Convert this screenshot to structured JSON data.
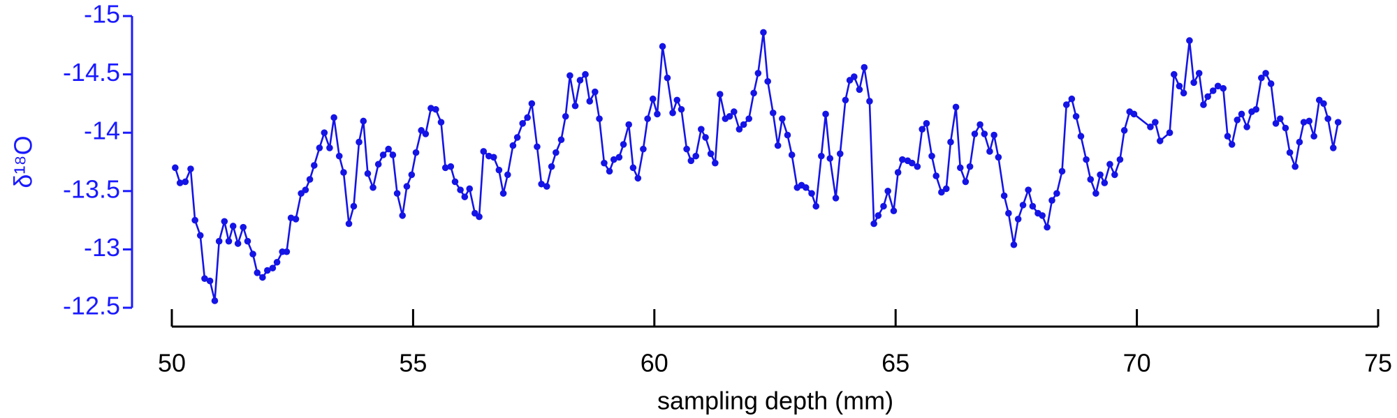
{
  "chart_data": {
    "type": "line",
    "xlabel": "sampling depth (mm)",
    "ylabel": "δ¹⁸O",
    "xlim": [
      50,
      75
    ],
    "xticks": [
      50,
      55,
      60,
      65,
      70,
      75
    ],
    "ylim": [
      -12.5,
      -15
    ],
    "yticks": [
      -15,
      -14.5,
      -14,
      -13.5,
      -13,
      -12.5
    ],
    "color": "#1414e6",
    "y_axis_color": "#1a1aff",
    "x_axis_color": "#000000",
    "markers": true,
    "x": [
      50.07,
      50.17,
      50.28,
      50.39,
      50.48,
      50.59,
      50.68,
      50.79,
      50.89,
      50.98,
      51.09,
      51.18,
      51.27,
      51.37,
      51.48,
      51.57,
      51.68,
      51.77,
      51.88,
      51.98,
      52.09,
      52.18,
      52.29,
      52.38,
      52.47,
      52.57,
      52.68,
      52.77,
      52.86,
      52.95,
      53.06,
      53.16,
      53.27,
      53.36,
      53.47,
      53.56,
      53.67,
      53.77,
      53.88,
      53.97,
      54.06,
      54.17,
      54.28,
      54.38,
      54.49,
      54.58,
      54.67,
      54.78,
      54.87,
      54.97,
      55.06,
      55.17,
      55.26,
      55.37,
      55.47,
      55.58,
      55.67,
      55.78,
      55.87,
      55.98,
      56.07,
      56.17,
      56.28,
      56.37,
      56.46,
      56.57,
      56.67,
      56.78,
      56.87,
      56.96,
      57.07,
      57.16,
      57.27,
      57.37,
      57.46,
      57.57,
      57.66,
      57.77,
      57.87,
      57.96,
      58.07,
      58.16,
      58.25,
      58.36,
      58.46,
      58.57,
      58.66,
      58.77,
      58.86,
      58.96,
      59.07,
      59.16,
      59.27,
      59.36,
      59.47,
      59.56,
      59.66,
      59.77,
      59.86,
      59.97,
      60.06,
      60.17,
      60.27,
      60.38,
      60.47,
      60.56,
      60.67,
      60.76,
      60.86,
      60.97,
      61.06,
      61.17,
      61.26,
      61.36,
      61.47,
      61.56,
      61.65,
      61.76,
      61.85,
      61.96,
      62.06,
      62.15,
      62.26,
      62.35,
      62.46,
      62.56,
      62.65,
      62.76,
      62.85,
      62.96,
      63.05,
      63.14,
      63.26,
      63.35,
      63.46,
      63.55,
      63.64,
      63.76,
      63.85,
      63.96,
      64.05,
      64.14,
      64.25,
      64.35,
      64.46,
      64.55,
      64.64,
      64.75,
      64.84,
      64.96,
      65.05,
      65.14,
      65.25,
      65.34,
      65.45,
      65.55,
      65.64,
      65.75,
      65.84,
      65.95,
      66.05,
      66.14,
      66.25,
      66.34,
      66.45,
      66.54,
      66.64,
      66.75,
      66.84,
      66.95,
      67.04,
      67.13,
      67.25,
      67.34,
      67.45,
      67.54,
      67.64,
      67.75,
      67.84,
      67.95,
      68.04,
      68.14,
      68.24,
      68.34,
      68.45,
      68.54,
      68.65,
      68.74,
      68.84,
      68.95,
      69.04,
      69.15,
      69.24,
      69.33,
      69.44,
      69.54,
      69.65,
      69.74,
      69.85,
      69.94,
      70.28,
      70.38,
      70.48,
      70.68,
      70.77,
      70.88,
      70.97,
      71.09,
      71.18,
      71.29,
      71.38,
      71.47,
      71.58,
      71.68,
      71.79,
      71.88,
      71.97,
      72.08,
      72.17,
      72.28,
      72.38,
      72.47,
      72.58,
      72.67,
      72.78,
      72.88,
      72.97,
      73.08,
      73.17,
      73.28,
      73.37,
      73.46,
      73.57,
      73.67,
      73.78,
      73.87,
      73.96,
      74.07,
      74.17
    ],
    "values": [
      -13.7,
      -13.57,
      -13.58,
      -13.69,
      -13.25,
      -13.12,
      -12.75,
      -12.73,
      -12.56,
      -13.07,
      -13.24,
      -13.07,
      -13.2,
      -13.05,
      -13.19,
      -13.07,
      -12.96,
      -12.8,
      -12.76,
      -12.82,
      -12.84,
      -12.89,
      -12.98,
      -12.98,
      -13.27,
      -13.26,
      -13.48,
      -13.51,
      -13.6,
      -13.72,
      -13.87,
      -14.0,
      -13.87,
      -14.13,
      -13.8,
      -13.66,
      -13.22,
      -13.37,
      -13.92,
      -14.1,
      -13.65,
      -13.53,
      -13.73,
      -13.81,
      -13.86,
      -13.81,
      -13.48,
      -13.29,
      -13.54,
      -13.64,
      -13.83,
      -14.02,
      -13.99,
      -14.21,
      -14.2,
      -14.09,
      -13.7,
      -13.71,
      -13.58,
      -13.51,
      -13.45,
      -13.52,
      -13.31,
      -13.28,
      -13.84,
      -13.8,
      -13.79,
      -13.68,
      -13.48,
      -13.64,
      -13.89,
      -13.96,
      -14.08,
      -14.13,
      -14.25,
      -13.88,
      -13.56,
      -13.54,
      -13.71,
      -13.83,
      -13.94,
      -14.14,
      -14.49,
      -14.23,
      -14.45,
      -14.5,
      -14.27,
      -14.35,
      -14.12,
      -13.74,
      -13.67,
      -13.77,
      -13.79,
      -13.9,
      -14.07,
      -13.7,
      -13.61,
      -13.86,
      -14.12,
      -14.29,
      -14.16,
      -14.74,
      -14.47,
      -14.17,
      -14.28,
      -14.2,
      -13.86,
      -13.76,
      -13.8,
      -14.03,
      -13.96,
      -13.82,
      -13.74,
      -14.33,
      -14.12,
      -14.14,
      -14.18,
      -14.03,
      -14.07,
      -14.12,
      -14.34,
      -14.51,
      -14.86,
      -14.44,
      -14.17,
      -13.89,
      -14.12,
      -13.98,
      -13.81,
      -13.53,
      -13.55,
      -13.53,
      -13.48,
      -13.37,
      -13.8,
      -14.16,
      -13.78,
      -13.44,
      -13.82,
      -14.28,
      -14.45,
      -14.48,
      -14.37,
      -14.56,
      -14.27,
      -13.22,
      -13.29,
      -13.37,
      -13.5,
      -13.33,
      -13.66,
      -13.77,
      -13.76,
      -13.74,
      -13.71,
      -14.03,
      -14.08,
      -13.8,
      -13.63,
      -13.49,
      -13.52,
      -13.92,
      -14.22,
      -13.7,
      -13.58,
      -13.71,
      -13.99,
      -14.07,
      -13.99,
      -13.84,
      -13.98,
      -13.79,
      -13.46,
      -13.31,
      -13.04,
      -13.26,
      -13.38,
      -13.51,
      -13.37,
      -13.31,
      -13.29,
      -13.19,
      -13.42,
      -13.48,
      -13.67,
      -14.24,
      -14.29,
      -14.14,
      -13.97,
      -13.77,
      -13.6,
      -13.48,
      -13.64,
      -13.57,
      -13.73,
      -13.64,
      -13.77,
      -14.02,
      -14.18,
      -14.16,
      -14.05,
      -14.09,
      -13.93,
      -14.0,
      -14.5,
      -14.4,
      -14.34,
      -14.79,
      -14.43,
      -14.51,
      -14.24,
      -14.31,
      -14.36,
      -14.4,
      -14.38,
      -13.97,
      -13.9,
      -14.11,
      -14.16,
      -14.05,
      -14.18,
      -14.2,
      -14.47,
      -14.51,
      -14.42,
      -14.08,
      -14.12,
      -14.04,
      -13.83,
      -13.71,
      -13.92,
      -14.09,
      -14.1,
      -13.97,
      -14.28,
      -14.25,
      -14.12,
      -13.87,
      -14.09
    ]
  }
}
